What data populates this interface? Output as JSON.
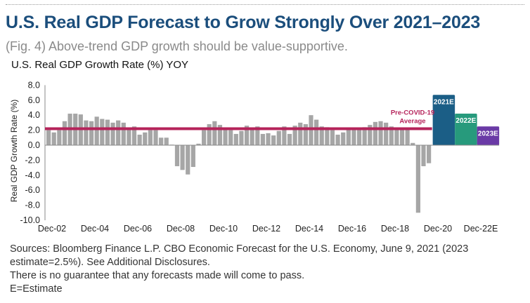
{
  "header": {
    "title": "U.S. Real GDP Forecast to Grow Strongly Over 2021–2023",
    "subtitle": "(Fig. 4) Above-trend GDP growth should be value-supportive."
  },
  "footer": {
    "lines": [
      "Sources: Bloomberg Finance L.P. CBO Economic Forecast for the U.S. Economy, June 9, 2021 (2023",
      "estimate=2.5%). See Additional Disclosures.",
      "There is no guarantee that any forecasts made will come to pass.",
      "E=Estimate"
    ]
  },
  "colors": {
    "history_bar": "#a6a6a6",
    "average_line": "#b5235a",
    "forecast_2021": "#1b5e86",
    "forecast_2022": "#279a7c",
    "forecast_2023": "#6a3aa6",
    "title": "#1b4e7c"
  },
  "chart_data": {
    "type": "bar",
    "title": "U.S. Real GDP Growth Rate (%) YOY",
    "xlabel": "",
    "ylabel": "Real GDP Growth Rate (%)",
    "ylim": [
      -10,
      8
    ],
    "yticks": [
      "8.0",
      "6.0",
      "4.0",
      "2.0",
      "0.0",
      "-2.0",
      "-4.0",
      "-6.0",
      "-8.0",
      "-10.0"
    ],
    "ytick_values": [
      8,
      6,
      4,
      2,
      0,
      -2,
      -4,
      -6,
      -8,
      -10
    ],
    "xtick_labels": [
      "Dec-02",
      "Dec-04",
      "Dec-06",
      "Dec-08",
      "Dec-10",
      "Dec-12",
      "Dec-14",
      "Dec-16",
      "Dec-18",
      "Dec-20",
      "Dec-22E"
    ],
    "grid": false,
    "series": [
      {
        "name": "Quarterly YOY growth (historical)",
        "start": "Dec-02",
        "frequency": "quarterly",
        "values": [
          2.0,
          1.7,
          2.0,
          3.2,
          4.2,
          4.2,
          4.1,
          3.3,
          3.2,
          3.8,
          3.5,
          3.4,
          3.0,
          3.3,
          3.0,
          2.3,
          2.5,
          1.4,
          1.7,
          2.0,
          2.0,
          1.0,
          1.0,
          0.0,
          -2.8,
          -3.3,
          -3.9,
          -2.9,
          0.2,
          2.0,
          2.8,
          3.2,
          2.7,
          2.1,
          2.0,
          1.5,
          1.9,
          2.6,
          2.3,
          2.5,
          1.5,
          1.6,
          1.3,
          1.9,
          2.5,
          1.5,
          2.6,
          3.0,
          2.8,
          4.0,
          3.4,
          2.5,
          2.4,
          2.0,
          1.4,
          1.7,
          2.2,
          2.2,
          2.2,
          2.4,
          2.7,
          3.1,
          3.2,
          3.0,
          2.5,
          2.2,
          2.2,
          2.2,
          0.3,
          -9.0,
          -2.8,
          -2.4
        ]
      },
      {
        "name": "Forecast (annual)",
        "categories": [
          "2021E",
          "2022E",
          "2023E"
        ],
        "values": [
          6.7,
          4.2,
          2.5
        ]
      }
    ],
    "reference_line": {
      "label_line1": "Pre-COVID-19",
      "label_line2": "Average",
      "value": 2.2
    }
  }
}
